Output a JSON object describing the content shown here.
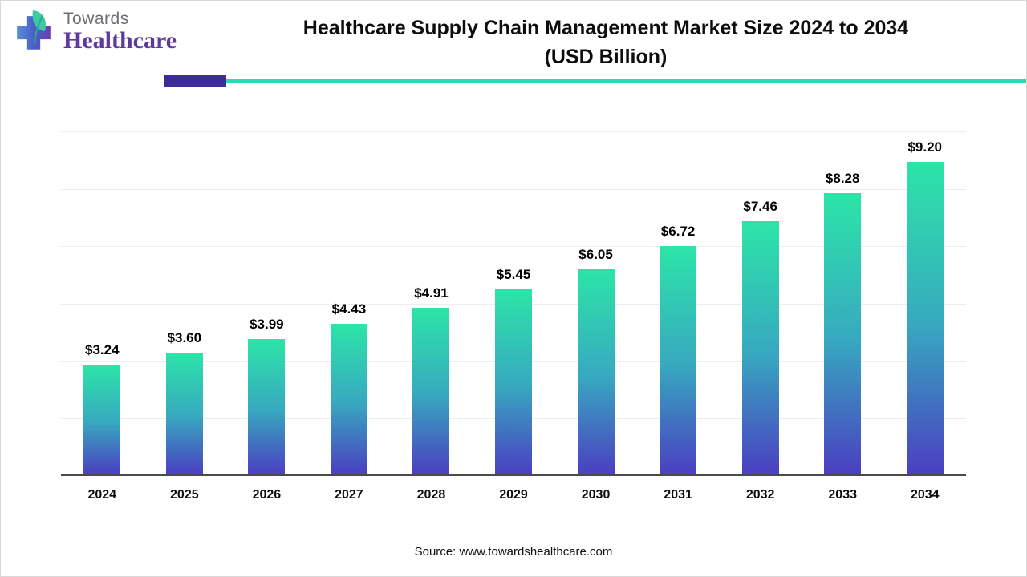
{
  "header": {
    "logo": {
      "brand_top": "Towards",
      "brand_bottom": "Healthcare"
    },
    "title_line1": "Healthcare Supply Chain Management Market Size 2024 to 2034",
    "title_line2": "(USD Billion)"
  },
  "chart_data": {
    "type": "bar",
    "title": "Healthcare Supply Chain Management Market Size 2024 to 2034 (USD Billion)",
    "categories": [
      "2024",
      "2025",
      "2026",
      "2027",
      "2028",
      "2029",
      "2030",
      "2031",
      "2032",
      "2033",
      "2034"
    ],
    "values": [
      3.24,
      3.6,
      3.99,
      4.43,
      4.91,
      5.45,
      6.05,
      6.72,
      7.46,
      8.28,
      9.2
    ],
    "labels": [
      "$3.24",
      "$3.60",
      "$3.99",
      "$4.43",
      "$4.91",
      "$5.45",
      "$6.05",
      "$6.72",
      "$7.46",
      "$8.28",
      "$9.20"
    ],
    "xlabel": "",
    "ylabel": "",
    "ylim": [
      0,
      10
    ],
    "grid": true,
    "legend": "none",
    "bar_gradient_top": "#2ce5a7",
    "bar_gradient_mid": "#37a9c0",
    "bar_gradient_bottom": "#4b3fc1"
  },
  "footer": {
    "source": "Source: www.towardshealthcare.com"
  },
  "colors": {
    "divider_teal": "#2fd7b5",
    "divider_purple": "#3b2d9b",
    "brand_purple": "#5d3a9b",
    "brand_gray": "#6d6e71"
  }
}
